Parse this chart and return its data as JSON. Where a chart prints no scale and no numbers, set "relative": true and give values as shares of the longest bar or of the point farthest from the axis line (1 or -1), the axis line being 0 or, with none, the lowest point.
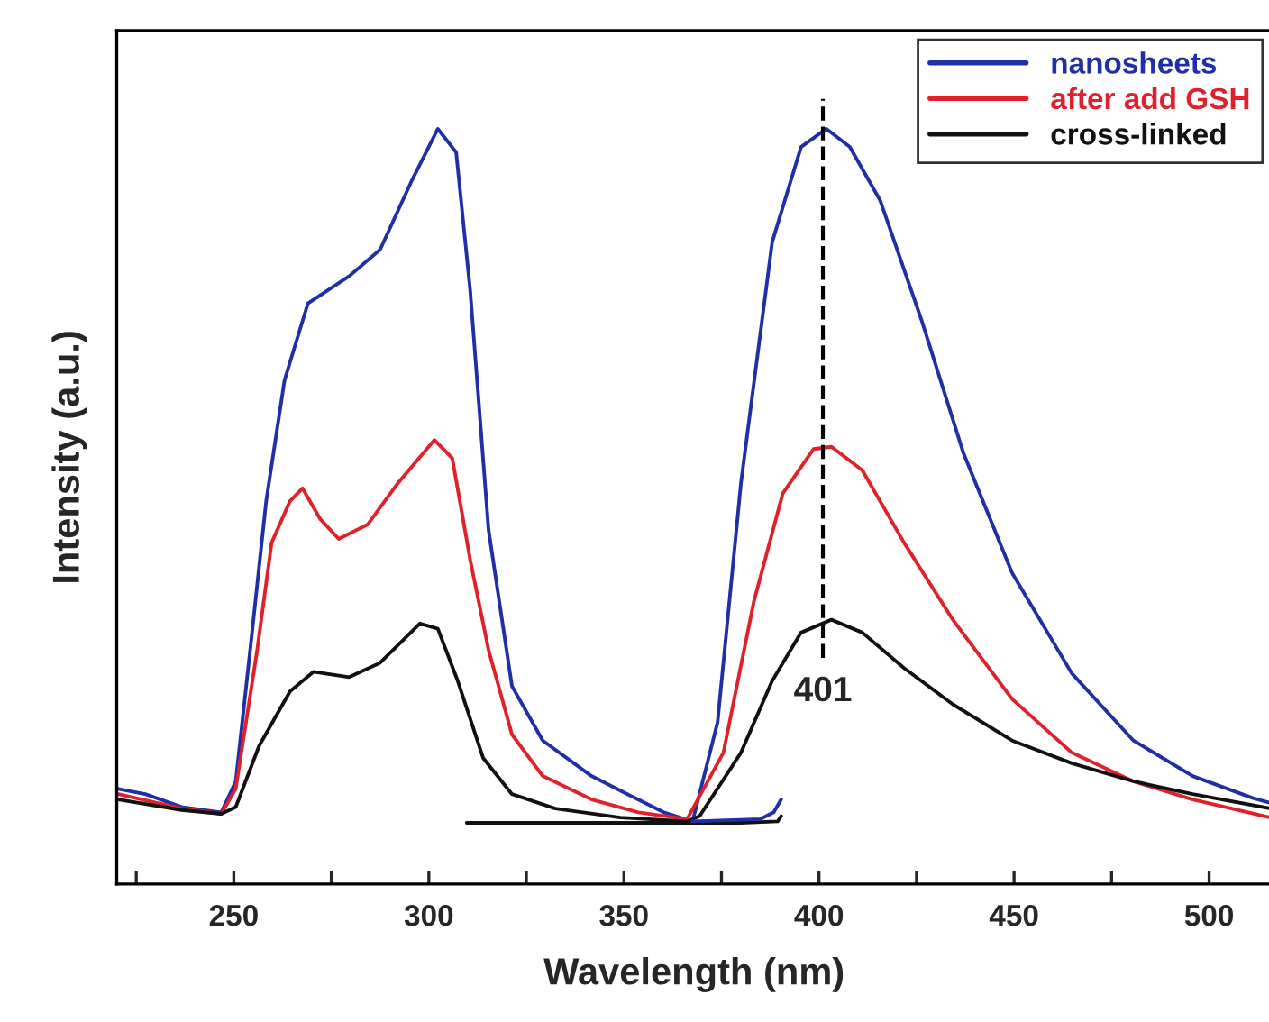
{
  "chart_data": {
    "type": "line",
    "relative": true,
    "xlabel": "Wavelength (nm)",
    "ylabel": "Intensity (a.u.)",
    "xlim": [
      220,
      516
    ],
    "xticks": [
      {
        "value": 225,
        "label": null
      },
      250,
      {
        "value": 275,
        "label": null
      },
      300,
      {
        "value": 325,
        "label": null
      },
      350,
      {
        "value": 375,
        "label": null
      },
      400,
      {
        "value": 425,
        "label": null
      },
      450,
      {
        "value": 475,
        "label": null
      },
      500
    ],
    "tick_labels": "x",
    "grid": false,
    "legend": "top right",
    "line_style": "solid",
    "marker": "none",
    "ref_lines": [
      {
        "axis": "x",
        "value": 401,
        "label": "401",
        "color": "#000000",
        "line_style": "dashed"
      }
    ],
    "series": [
      {
        "name": "nanosheets",
        "color": "#1f2fa8",
        "x": [
          220.4,
          227.3,
          236.6,
          246.8,
          250.5,
          254.2,
          258.3,
          263,
          269,
          279.6,
          287.5,
          295.4,
          302.3,
          307,
          310.6,
          315.3,
          321.3,
          329.2,
          341.7,
          350.9,
          360.2,
          367.6,
          374,
          380,
          388,
          395.4,
          401.9,
          407.9,
          415.7,
          426.4,
          437,
          449.5,
          464.8,
          480.6,
          495.8,
          511.1,
          516
        ],
        "values": [
          0.126,
          0.119,
          0.102,
          0.095,
          0.136,
          0.31,
          0.507,
          0.667,
          0.769,
          0.805,
          0.84,
          0.929,
          1,
          0.969,
          0.786,
          0.469,
          0.262,
          0.19,
          0.143,
          0.119,
          0.095,
          0.083,
          0.214,
          0.531,
          0.85,
          0.976,
          1,
          0.976,
          0.905,
          0.745,
          0.571,
          0.412,
          0.279,
          0.19,
          0.143,
          0.114,
          0.107
        ]
      },
      {
        "name": "after add GSH",
        "color": "#e0202a",
        "x": [
          220.4,
          236.6,
          246.8,
          250.5,
          256,
          259.7,
          264.4,
          267.6,
          272.2,
          276.9,
          284.3,
          292.1,
          301.4,
          306,
          310.6,
          315.3,
          321.3,
          329.2,
          341.7,
          353.7,
          366.2,
          375.5,
          383.3,
          390.7,
          398.6,
          403.2,
          411.1,
          421.8,
          434.3,
          449.5,
          464.8,
          480.6,
          495.8,
          515.7
        ],
        "values": [
          0.119,
          0.1,
          0.093,
          0.126,
          0.31,
          0.452,
          0.507,
          0.524,
          0.483,
          0.457,
          0.476,
          0.531,
          0.588,
          0.564,
          0.429,
          0.31,
          0.198,
          0.143,
          0.112,
          0.095,
          0.086,
          0.174,
          0.374,
          0.517,
          0.576,
          0.579,
          0.548,
          0.452,
          0.35,
          0.245,
          0.174,
          0.136,
          0.112,
          0.088
        ]
      },
      {
        "name": "cross-linked",
        "color": "#111111",
        "x": [
          220.4,
          236.6,
          246.8,
          250.5,
          256.5,
          264.4,
          270.4,
          279.6,
          287.5,
          297.7,
          302.3,
          307.4,
          313.9,
          321.3,
          332.4,
          349.1,
          366.2,
          369.4,
          380,
          388,
          395.4,
          403.2,
          411.1,
          421.8,
          434.3,
          449.5,
          464.8,
          480.6,
          495.8,
          515.7
        ],
        "values": [
          0.112,
          0.098,
          0.093,
          0.102,
          0.183,
          0.255,
          0.281,
          0.274,
          0.293,
          0.345,
          0.338,
          0.269,
          0.167,
          0.119,
          0.1,
          0.088,
          0.083,
          0.09,
          0.174,
          0.269,
          0.333,
          0.35,
          0.333,
          0.286,
          0.238,
          0.19,
          0.16,
          0.136,
          0.119,
          0.1
        ]
      },
      {
        "color": "#111111",
        "x": [
          309.7,
          380,
          389.4,
          390.3
        ],
        "values": [
          0.081,
          0.081,
          0.083,
          0.09
        ]
      },
      {
        "color": "#1f2fa8",
        "x": [
          367.6,
          385,
          388.4,
          390.3
        ],
        "values": [
          0.083,
          0.086,
          0.095,
          0.112
        ]
      }
    ]
  }
}
